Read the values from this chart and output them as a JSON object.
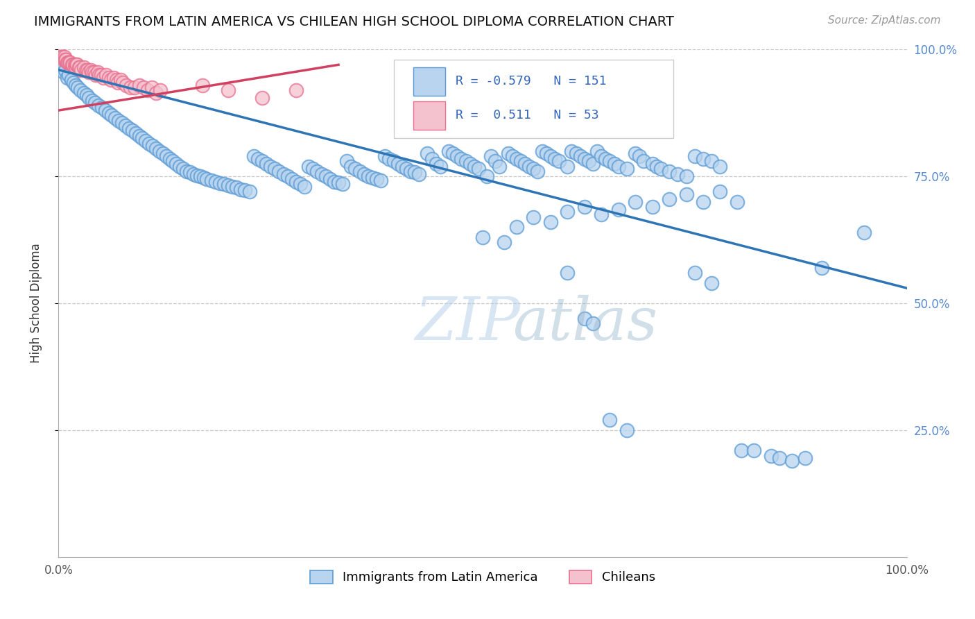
{
  "title": "IMMIGRANTS FROM LATIN AMERICA VS CHILEAN HIGH SCHOOL DIPLOMA CORRELATION CHART",
  "source": "Source: ZipAtlas.com",
  "ylabel": "High School Diploma",
  "legend_label1": "Immigrants from Latin America",
  "legend_label2": "Chileans",
  "r1": -0.579,
  "n1": 151,
  "r2": 0.511,
  "n2": 53,
  "blue_color": "#b8d4ee",
  "blue_edge_color": "#5b9bd5",
  "pink_color": "#f4c2ce",
  "pink_edge_color": "#e87090",
  "blue_line_color": "#2e75b6",
  "pink_line_color": "#d04060",
  "blue_line_x": [
    0.0,
    100.0
  ],
  "blue_line_y": [
    96.0,
    53.0
  ],
  "pink_line_x": [
    0.0,
    33.0
  ],
  "pink_line_y": [
    88.0,
    97.0
  ],
  "blue_dots": [
    [
      0.4,
      96.5
    ],
    [
      0.6,
      95.5
    ],
    [
      0.8,
      96.0
    ],
    [
      1.0,
      94.5
    ],
    [
      1.2,
      95.0
    ],
    [
      1.5,
      94.0
    ],
    [
      1.8,
      93.5
    ],
    [
      2.0,
      93.0
    ],
    [
      2.3,
      92.5
    ],
    [
      2.6,
      92.0
    ],
    [
      3.0,
      91.5
    ],
    [
      3.3,
      91.0
    ],
    [
      3.6,
      90.5
    ],
    [
      4.0,
      90.0
    ],
    [
      4.3,
      89.5
    ],
    [
      4.7,
      89.0
    ],
    [
      5.1,
      88.5
    ],
    [
      5.5,
      88.0
    ],
    [
      5.9,
      87.5
    ],
    [
      6.3,
      87.0
    ],
    [
      6.7,
      86.5
    ],
    [
      7.1,
      86.0
    ],
    [
      7.5,
      85.5
    ],
    [
      7.9,
      85.0
    ],
    [
      8.3,
      84.5
    ],
    [
      8.7,
      84.0
    ],
    [
      9.1,
      83.5
    ],
    [
      9.5,
      83.0
    ],
    [
      9.9,
      82.5
    ],
    [
      10.3,
      82.0
    ],
    [
      10.7,
      81.5
    ],
    [
      11.1,
      81.0
    ],
    [
      11.5,
      80.5
    ],
    [
      11.9,
      80.0
    ],
    [
      12.3,
      79.5
    ],
    [
      12.7,
      79.0
    ],
    [
      13.1,
      78.5
    ],
    [
      13.5,
      78.0
    ],
    [
      13.9,
      77.5
    ],
    [
      14.3,
      77.0
    ],
    [
      14.7,
      76.5
    ],
    [
      15.1,
      76.0
    ],
    [
      15.5,
      75.8
    ],
    [
      15.9,
      75.5
    ],
    [
      16.3,
      75.2
    ],
    [
      16.7,
      75.0
    ],
    [
      17.1,
      74.8
    ],
    [
      17.5,
      74.5
    ],
    [
      18.0,
      74.2
    ],
    [
      18.5,
      74.0
    ],
    [
      19.0,
      73.7
    ],
    [
      19.5,
      73.5
    ],
    [
      20.0,
      73.2
    ],
    [
      20.5,
      73.0
    ],
    [
      21.0,
      72.8
    ],
    [
      21.5,
      72.5
    ],
    [
      22.0,
      72.3
    ],
    [
      22.5,
      72.0
    ],
    [
      23.0,
      79.0
    ],
    [
      23.5,
      78.5
    ],
    [
      24.0,
      78.0
    ],
    [
      24.5,
      77.5
    ],
    [
      25.0,
      77.0
    ],
    [
      25.5,
      76.5
    ],
    [
      26.0,
      76.0
    ],
    [
      26.5,
      75.5
    ],
    [
      27.0,
      75.0
    ],
    [
      27.5,
      74.5
    ],
    [
      28.0,
      74.0
    ],
    [
      28.5,
      73.5
    ],
    [
      29.0,
      73.0
    ],
    [
      29.5,
      77.0
    ],
    [
      30.0,
      76.5
    ],
    [
      30.5,
      76.0
    ],
    [
      31.0,
      75.5
    ],
    [
      31.5,
      75.0
    ],
    [
      32.0,
      74.5
    ],
    [
      32.5,
      74.0
    ],
    [
      33.0,
      73.8
    ],
    [
      33.5,
      73.5
    ],
    [
      34.0,
      78.0
    ],
    [
      34.5,
      77.0
    ],
    [
      35.0,
      76.5
    ],
    [
      35.5,
      76.0
    ],
    [
      36.0,
      75.5
    ],
    [
      36.5,
      75.0
    ],
    [
      37.0,
      74.8
    ],
    [
      37.5,
      74.5
    ],
    [
      38.0,
      74.2
    ],
    [
      38.5,
      79.0
    ],
    [
      39.0,
      78.5
    ],
    [
      39.5,
      78.0
    ],
    [
      40.0,
      77.5
    ],
    [
      40.5,
      77.0
    ],
    [
      41.0,
      76.5
    ],
    [
      41.5,
      76.0
    ],
    [
      42.0,
      75.8
    ],
    [
      42.5,
      75.5
    ],
    [
      43.5,
      79.5
    ],
    [
      44.0,
      78.5
    ],
    [
      44.5,
      77.5
    ],
    [
      45.0,
      77.0
    ],
    [
      46.0,
      80.0
    ],
    [
      46.5,
      79.5
    ],
    [
      47.0,
      79.0
    ],
    [
      47.5,
      78.5
    ],
    [
      48.0,
      78.0
    ],
    [
      48.5,
      77.5
    ],
    [
      49.0,
      77.0
    ],
    [
      49.5,
      76.5
    ],
    [
      50.5,
      75.0
    ],
    [
      51.0,
      79.0
    ],
    [
      51.5,
      78.0
    ],
    [
      52.0,
      77.0
    ],
    [
      53.0,
      79.5
    ],
    [
      53.5,
      79.0
    ],
    [
      54.0,
      78.5
    ],
    [
      54.5,
      78.0
    ],
    [
      55.0,
      77.5
    ],
    [
      55.5,
      77.0
    ],
    [
      56.0,
      76.5
    ],
    [
      56.5,
      76.0
    ],
    [
      57.0,
      80.0
    ],
    [
      57.5,
      79.5
    ],
    [
      58.0,
      79.0
    ],
    [
      58.5,
      78.5
    ],
    [
      59.0,
      78.0
    ],
    [
      60.0,
      77.0
    ],
    [
      60.5,
      80.0
    ],
    [
      61.0,
      79.5
    ],
    [
      61.5,
      79.0
    ],
    [
      62.0,
      78.5
    ],
    [
      62.5,
      78.0
    ],
    [
      63.0,
      77.5
    ],
    [
      63.5,
      80.0
    ],
    [
      64.0,
      79.0
    ],
    [
      64.5,
      78.5
    ],
    [
      65.0,
      78.0
    ],
    [
      65.5,
      77.5
    ],
    [
      66.0,
      77.0
    ],
    [
      67.0,
      76.5
    ],
    [
      68.0,
      79.5
    ],
    [
      68.5,
      79.0
    ],
    [
      69.0,
      78.0
    ],
    [
      70.0,
      77.5
    ],
    [
      70.5,
      77.0
    ],
    [
      71.0,
      76.5
    ],
    [
      72.0,
      76.0
    ],
    [
      73.0,
      75.5
    ],
    [
      74.0,
      75.0
    ],
    [
      75.0,
      79.0
    ],
    [
      76.0,
      78.5
    ],
    [
      77.0,
      78.0
    ],
    [
      78.0,
      77.0
    ],
    [
      50.0,
      63.0
    ],
    [
      52.5,
      62.0
    ],
    [
      54.0,
      65.0
    ],
    [
      56.0,
      67.0
    ],
    [
      58.0,
      66.0
    ],
    [
      60.0,
      68.0
    ],
    [
      62.0,
      69.0
    ],
    [
      64.0,
      67.5
    ],
    [
      66.0,
      68.5
    ],
    [
      68.0,
      70.0
    ],
    [
      70.0,
      69.0
    ],
    [
      72.0,
      70.5
    ],
    [
      74.0,
      71.5
    ],
    [
      76.0,
      70.0
    ],
    [
      78.0,
      72.0
    ],
    [
      80.0,
      70.0
    ],
    [
      60.0,
      56.0
    ],
    [
      62.0,
      47.0
    ],
    [
      63.0,
      46.0
    ],
    [
      65.0,
      27.0
    ],
    [
      67.0,
      25.0
    ],
    [
      75.0,
      56.0
    ],
    [
      77.0,
      54.0
    ],
    [
      80.5,
      21.0
    ],
    [
      82.0,
      21.0
    ],
    [
      84.0,
      20.0
    ],
    [
      85.0,
      19.5
    ],
    [
      86.5,
      19.0
    ],
    [
      88.0,
      19.5
    ],
    [
      90.0,
      57.0
    ],
    [
      95.0,
      64.0
    ]
  ],
  "pink_dots": [
    [
      0.2,
      99.0
    ],
    [
      0.3,
      98.5
    ],
    [
      0.5,
      98.5
    ],
    [
      0.6,
      98.0
    ],
    [
      0.7,
      98.5
    ],
    [
      0.8,
      98.0
    ],
    [
      0.9,
      98.0
    ],
    [
      1.0,
      97.5
    ],
    [
      1.1,
      97.5
    ],
    [
      1.3,
      97.5
    ],
    [
      1.4,
      97.5
    ],
    [
      1.6,
      97.0
    ],
    [
      1.7,
      97.0
    ],
    [
      1.9,
      97.0
    ],
    [
      2.0,
      96.5
    ],
    [
      2.1,
      97.0
    ],
    [
      2.2,
      97.0
    ],
    [
      2.4,
      96.5
    ],
    [
      2.5,
      96.5
    ],
    [
      2.7,
      96.0
    ],
    [
      3.0,
      96.5
    ],
    [
      3.2,
      96.0
    ],
    [
      3.4,
      96.0
    ],
    [
      3.6,
      95.5
    ],
    [
      3.8,
      96.0
    ],
    [
      4.0,
      95.5
    ],
    [
      4.2,
      95.5
    ],
    [
      4.4,
      95.0
    ],
    [
      4.6,
      95.5
    ],
    [
      4.8,
      95.0
    ],
    [
      5.0,
      95.0
    ],
    [
      5.3,
      94.5
    ],
    [
      5.6,
      95.0
    ],
    [
      5.9,
      94.5
    ],
    [
      6.2,
      94.0
    ],
    [
      6.5,
      94.5
    ],
    [
      6.8,
      94.0
    ],
    [
      7.0,
      93.5
    ],
    [
      7.3,
      94.0
    ],
    [
      7.6,
      93.5
    ],
    [
      8.0,
      93.0
    ],
    [
      8.5,
      92.5
    ],
    [
      9.0,
      92.5
    ],
    [
      9.5,
      93.0
    ],
    [
      10.0,
      92.5
    ],
    [
      10.5,
      92.0
    ],
    [
      11.0,
      92.5
    ],
    [
      11.5,
      91.5
    ],
    [
      12.0,
      92.0
    ],
    [
      17.0,
      93.0
    ],
    [
      20.0,
      92.0
    ],
    [
      24.0,
      90.5
    ],
    [
      28.0,
      92.0
    ]
  ],
  "xmin": 0.0,
  "xmax": 100.0,
  "ymin": 0.0,
  "ymax": 100.0,
  "ytick_positions": [
    25,
    50,
    75,
    100
  ],
  "ytick_labels": [
    "25.0%",
    "50.0%",
    "75.0%",
    "100.0%"
  ],
  "grid_color": "#c8c8c8",
  "grid_style": "--",
  "background_color": "#ffffff",
  "watermark_text1": "ZIP",
  "watermark_text2": "atlas",
  "title_fontsize": 14,
  "source_fontsize": 11,
  "axis_label_fontsize": 12,
  "tick_label_fontsize": 12,
  "legend_fontsize": 13,
  "dot_size": 200,
  "dot_alpha": 0.75,
  "dot_linewidth": 1.5
}
